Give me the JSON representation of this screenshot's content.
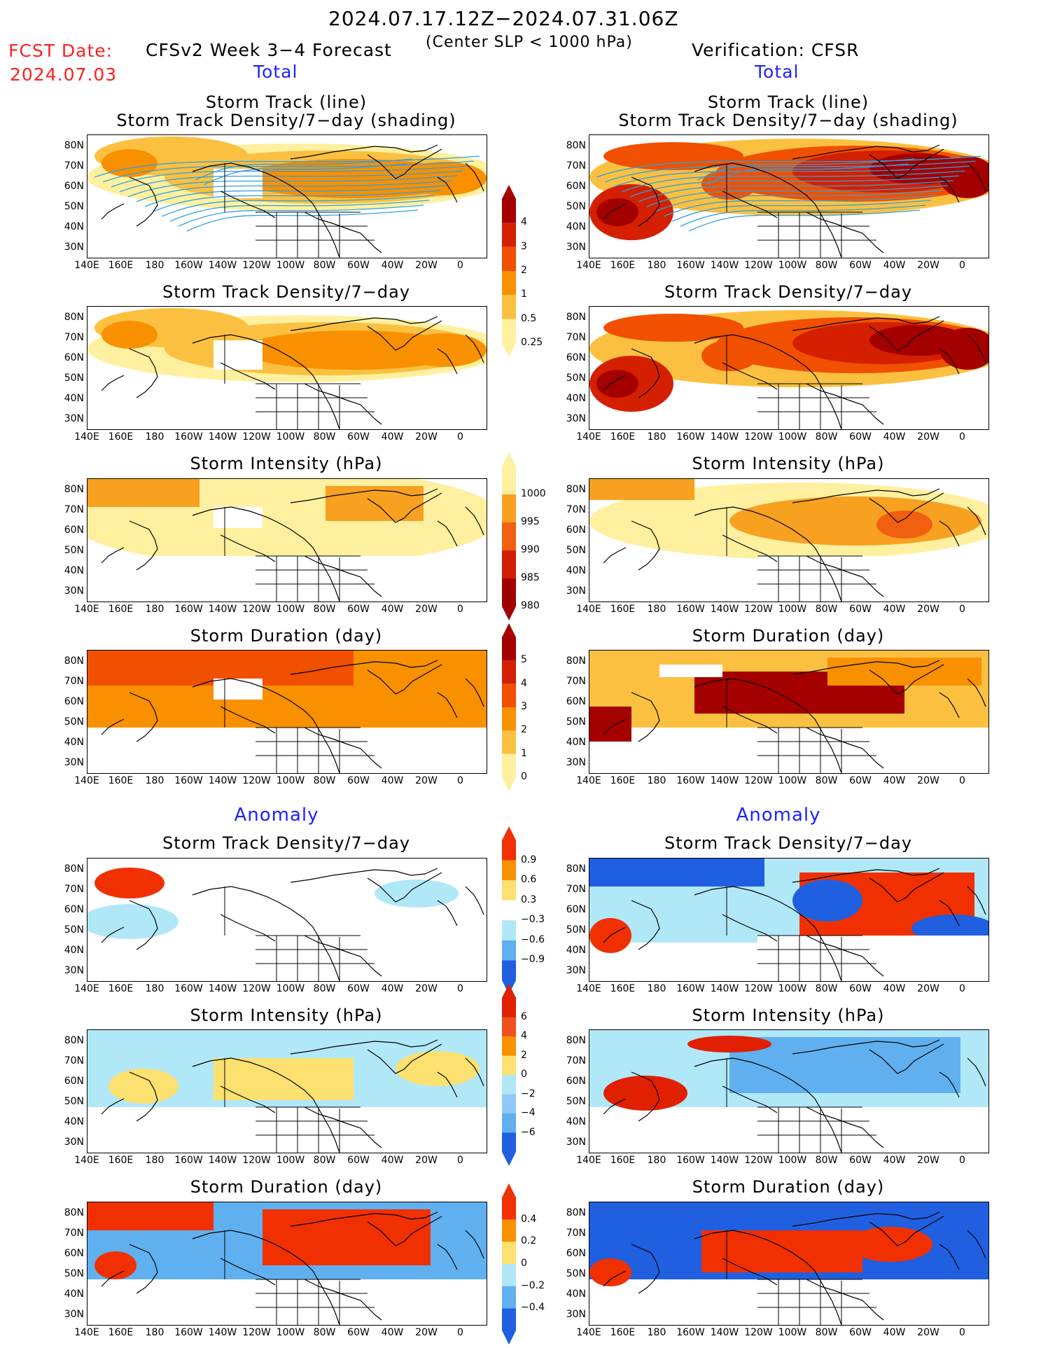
{
  "header": {
    "date_range": "2024.07.17.12Z−2024.07.31.06Z",
    "fcst_label": "FCST Date:",
    "fcst_date": "2024.07.03",
    "title": "CFSv2 Week 3−4 Forecast",
    "criterion": "(Center SLP < 1000 hPa)",
    "verification": "Verification: CFSR",
    "left_total": "Total",
    "right_total": "Total",
    "left_anomaly": "Anomaly",
    "right_anomaly": "Anomaly"
  },
  "axes": {
    "lat_labels": [
      "80N",
      "70N",
      "60N",
      "50N",
      "40N",
      "30N"
    ],
    "lon_labels": [
      "140E",
      "160E",
      "180",
      "160W",
      "140W",
      "120W",
      "100W",
      "80W",
      "60W",
      "40W",
      "20W",
      "0"
    ]
  },
  "panels": {
    "p1_title_a": "Storm Track (line)",
    "p1_title_b": "Storm Track Density/7−day (shading)",
    "p2_title": "Storm Track Density/7−day",
    "p3_title": "Storm Intensity (hPa)",
    "p4_title": "Storm Duration (day)",
    "p5_title": "Storm Track Density/7−day",
    "p6_title": "Storm Intensity (hPa)",
    "p7_title": "Storm Duration (day)"
  },
  "colorbars": {
    "density": {
      "labels": [
        "4",
        "3",
        "2",
        "1",
        "0.5",
        "0.25"
      ],
      "colors": [
        "#a50000",
        "#d42000",
        "#f05000",
        "#f89000",
        "#fcc040",
        "#fff0a0"
      ]
    },
    "intensity": {
      "labels": [
        "1000",
        "995",
        "990",
        "985",
        "980"
      ],
      "colors": [
        "#fff0a0",
        "#f8a020",
        "#f06010",
        "#d02000",
        "#a00000"
      ]
    },
    "duration": {
      "labels": [
        "5",
        "4",
        "3",
        "2",
        "1",
        "0"
      ],
      "colors": [
        "#a50000",
        "#d42000",
        "#f05000",
        "#f89000",
        "#fcc040",
        "#fff0a0"
      ]
    },
    "density_anom": {
      "labels": [
        "0.9",
        "0.6",
        "0.3",
        "−0.3",
        "−0.6",
        "−0.9"
      ],
      "colors": [
        "#f03000",
        "#f89000",
        "#fce070",
        "#ffffff",
        "#b0e8f8",
        "#60b0f0",
        "#2060e0"
      ]
    },
    "intensity_anom": {
      "labels": [
        "6",
        "4",
        "2",
        "0",
        "−2",
        "−4",
        "−6"
      ],
      "colors": [
        "#e02000",
        "#f05020",
        "#f89000",
        "#fce070",
        "#b0e8f8",
        "#90c8f8",
        "#60b0f0",
        "#2060e0"
      ]
    },
    "duration_anom": {
      "labels": [
        "0.4",
        "0.2",
        "0",
        "−0.2",
        "−0.4"
      ],
      "colors": [
        "#f03000",
        "#f89000",
        "#fce070",
        "#b0e8f8",
        "#60b0f0",
        "#2060e0"
      ]
    }
  }
}
